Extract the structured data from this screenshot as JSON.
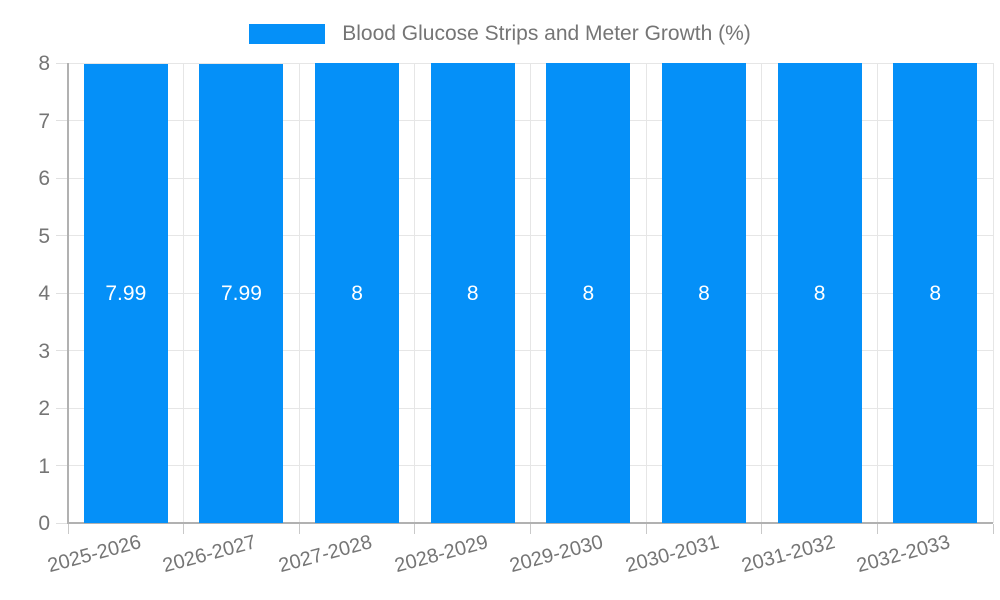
{
  "legend": {
    "label": "Blood Glucose Strips and Meter Growth (%)"
  },
  "chart_data": {
    "type": "bar",
    "title": "Blood Glucose Strips and Meter Growth (%)",
    "categories": [
      "2025-2026",
      "2026-2027",
      "2027-2028",
      "2028-2029",
      "2029-2030",
      "2030-2031",
      "2031-2032",
      "2032-2033"
    ],
    "values": [
      7.99,
      7.99,
      8,
      8,
      8,
      8,
      8,
      8
    ],
    "bar_labels": [
      "7.99",
      "7.99",
      "8",
      "8",
      "8",
      "8",
      "8",
      "8"
    ],
    "xlabel": "",
    "ylabel": "",
    "ylim": [
      0,
      8
    ],
    "y_ticks": [
      0,
      1,
      2,
      3,
      4,
      5,
      6,
      7,
      8
    ],
    "grid": "on",
    "legend_position": "top",
    "colors": {
      "bar": "#0590f8",
      "grid": "#e6e6e6",
      "axis": "#b1b1b1",
      "ytick": "#e0e0e0",
      "xtick": "#c9c9c9",
      "text": "#757575",
      "bar_label": "#ffffff",
      "background": "#ffffff"
    }
  }
}
